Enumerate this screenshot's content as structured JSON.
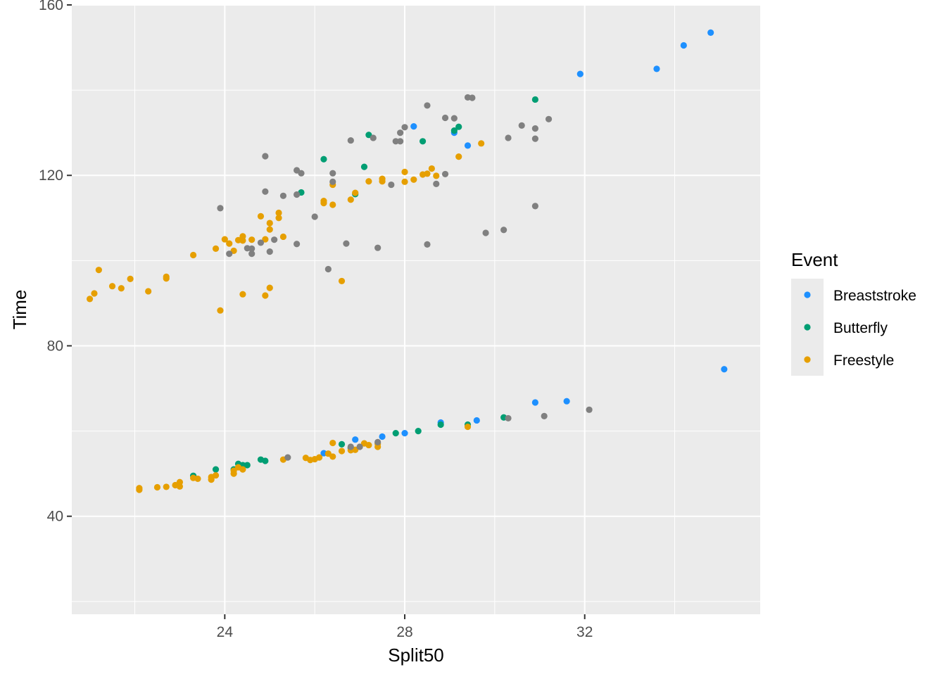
{
  "chart_data": {
    "type": "scatter",
    "title": "",
    "xlabel": "Split50",
    "ylabel": "Time",
    "xlim": [
      20.6,
      35.9
    ],
    "ylim": [
      17,
      160
    ],
    "x_ticks": [
      24,
      28,
      32
    ],
    "x_tick_labels": [
      "24",
      "28",
      "32"
    ],
    "y_ticks": [
      40,
      80,
      120,
      160
    ],
    "y_tick_labels": [
      "40",
      "80",
      "120",
      "160"
    ],
    "grid": true,
    "background": "#ebebeb",
    "legend": {
      "title": "Event",
      "position": "right",
      "entries": [
        "Breaststroke",
        "Butterfly",
        "Freestyle"
      ]
    },
    "colors": {
      "Breaststroke": "#1e90ff",
      "Butterfly": "#009e73",
      "Freestyle": "#e69f00",
      "unlabeled": "#808080"
    },
    "series": [
      {
        "name": "Breaststroke",
        "points": [
          [
            34.8,
            153.5
          ],
          [
            34.2,
            150.5
          ],
          [
            33.6,
            145
          ],
          [
            31.9,
            143.8
          ],
          [
            35.1,
            74.5
          ],
          [
            28.2,
            131.5
          ],
          [
            29.1,
            130
          ],
          [
            29.4,
            127
          ],
          [
            31.6,
            67
          ],
          [
            30.9,
            66.7
          ],
          [
            29.6,
            62.5
          ],
          [
            28.8,
            62
          ],
          [
            28.0,
            59.5
          ],
          [
            27.5,
            58.7
          ],
          [
            26.9,
            58
          ],
          [
            26.2,
            54.8
          ]
        ]
      },
      {
        "name": "Butterfly",
        "points": [
          [
            30.9,
            137.8
          ],
          [
            29.2,
            131.4
          ],
          [
            29.1,
            130.5
          ],
          [
            27.2,
            129.5
          ],
          [
            28.4,
            128
          ],
          [
            27.1,
            122
          ],
          [
            26.2,
            123.8
          ],
          [
            25.7,
            116
          ],
          [
            26.9,
            115.6
          ],
          [
            23.3,
            49.5
          ],
          [
            23.8,
            51
          ],
          [
            24.2,
            51
          ],
          [
            24.3,
            52.3
          ],
          [
            24.4,
            52
          ],
          [
            24.5,
            52
          ],
          [
            24.8,
            53.3
          ],
          [
            24.9,
            53
          ],
          [
            26.6,
            56.9
          ],
          [
            26.8,
            56
          ],
          [
            27.8,
            59.5
          ],
          [
            28.3,
            60
          ],
          [
            28.8,
            61.5
          ],
          [
            29.4,
            61.5
          ],
          [
            30.2,
            63.2
          ]
        ]
      },
      {
        "name": "Freestyle",
        "points": [
          [
            21.0,
            91
          ],
          [
            21.1,
            92.3
          ],
          [
            21.2,
            97.8
          ],
          [
            21.5,
            94
          ],
          [
            21.7,
            93.5
          ],
          [
            21.9,
            95.7
          ],
          [
            22.3,
            92.8
          ],
          [
            22.7,
            96.2
          ],
          [
            22.7,
            95.8
          ],
          [
            23.3,
            101.3
          ],
          [
            23.8,
            102.8
          ],
          [
            24.0,
            105
          ],
          [
            24.1,
            104
          ],
          [
            24.2,
            102.3
          ],
          [
            24.3,
            104.8
          ],
          [
            24.4,
            105.7
          ],
          [
            24.4,
            104.7
          ],
          [
            24.6,
            104.9
          ],
          [
            24.8,
            110.4
          ],
          [
            24.9,
            105
          ],
          [
            25.0,
            107.3
          ],
          [
            25.0,
            108.8
          ],
          [
            25.2,
            110
          ],
          [
            25.2,
            111.2
          ],
          [
            25.3,
            105.6
          ],
          [
            23.9,
            88.3
          ],
          [
            24.4,
            92.1
          ],
          [
            24.9,
            91.8
          ],
          [
            25.0,
            93.6
          ],
          [
            26.2,
            114
          ],
          [
            26.2,
            113.5
          ],
          [
            26.4,
            113.1
          ],
          [
            26.4,
            117.8
          ],
          [
            26.6,
            95.2
          ],
          [
            26.8,
            114.3
          ],
          [
            26.9,
            115.9
          ],
          [
            27.2,
            118.6
          ],
          [
            27.5,
            118.6
          ],
          [
            27.5,
            119.2
          ],
          [
            28.0,
            118.5
          ],
          [
            28.0,
            120.8
          ],
          [
            28.2,
            119
          ],
          [
            28.4,
            120.2
          ],
          [
            28.5,
            120.4
          ],
          [
            28.6,
            121.6
          ],
          [
            28.7,
            119.9
          ],
          [
            29.2,
            124.4
          ],
          [
            29.7,
            127.5
          ],
          [
            22.1,
            46.2
          ],
          [
            22.1,
            46.6
          ],
          [
            22.5,
            46.8
          ],
          [
            22.7,
            46.9
          ],
          [
            22.9,
            47.3
          ],
          [
            23.0,
            47
          ],
          [
            23.0,
            48
          ],
          [
            23.3,
            49
          ],
          [
            23.4,
            48.8
          ],
          [
            23.7,
            49.2
          ],
          [
            23.8,
            49.6
          ],
          [
            23.7,
            48.6
          ],
          [
            24.2,
            50
          ],
          [
            24.2,
            50.7
          ],
          [
            24.3,
            51.5
          ],
          [
            24.4,
            51
          ],
          [
            25.3,
            53.3
          ],
          [
            25.8,
            53.7
          ],
          [
            25.9,
            53.2
          ],
          [
            26.0,
            53.4
          ],
          [
            26.1,
            53.8
          ],
          [
            26.3,
            54.7
          ],
          [
            26.4,
            54
          ],
          [
            26.4,
            57.2
          ],
          [
            26.6,
            55.3
          ],
          [
            26.8,
            55.5
          ],
          [
            26.9,
            55.6
          ],
          [
            27.1,
            57.1
          ],
          [
            27.2,
            56.7
          ],
          [
            27.4,
            57
          ],
          [
            27.4,
            56.3
          ],
          [
            29.4,
            61
          ]
        ]
      },
      {
        "name": "",
        "points": [
          [
            29.5,
            138.2
          ],
          [
            29.4,
            138.3
          ],
          [
            28.5,
            136.4
          ],
          [
            28.9,
            133.5
          ],
          [
            29.1,
            133.4
          ],
          [
            31.2,
            133.2
          ],
          [
            30.6,
            131.7
          ],
          [
            30.9,
            131
          ],
          [
            28.0,
            131.3
          ],
          [
            27.9,
            130
          ],
          [
            27.3,
            128.8
          ],
          [
            26.8,
            128.2
          ],
          [
            27.8,
            128
          ],
          [
            27.9,
            128
          ],
          [
            30.3,
            128.8
          ],
          [
            30.9,
            128.6
          ],
          [
            24.9,
            124.5
          ],
          [
            25.6,
            121.2
          ],
          [
            25.7,
            120.5
          ],
          [
            26.4,
            120.5
          ],
          [
            26.4,
            118.5
          ],
          [
            27.7,
            117.8
          ],
          [
            28.7,
            118
          ],
          [
            28.9,
            120.3
          ],
          [
            24.9,
            116.2
          ],
          [
            25.6,
            115.5
          ],
          [
            25.3,
            115.2
          ],
          [
            26.0,
            110.3
          ],
          [
            23.9,
            112.3
          ],
          [
            30.9,
            112.8
          ],
          [
            29.8,
            106.5
          ],
          [
            30.2,
            107.2
          ],
          [
            24.1,
            101.6
          ],
          [
            24.5,
            102.9
          ],
          [
            24.6,
            102.8
          ],
          [
            24.6,
            101.6
          ],
          [
            25.0,
            102.1
          ],
          [
            24.8,
            104.2
          ],
          [
            25.1,
            104.9
          ],
          [
            25.6,
            103.9
          ],
          [
            26.7,
            104
          ],
          [
            27.4,
            103
          ],
          [
            28.5,
            103.8
          ],
          [
            26.3,
            98
          ],
          [
            25.4,
            53.8
          ],
          [
            26.8,
            56.3
          ],
          [
            27.0,
            56.3
          ],
          [
            27.4,
            57.4
          ],
          [
            30.3,
            63
          ],
          [
            31.1,
            63.5
          ],
          [
            32.1,
            65
          ]
        ]
      }
    ]
  }
}
